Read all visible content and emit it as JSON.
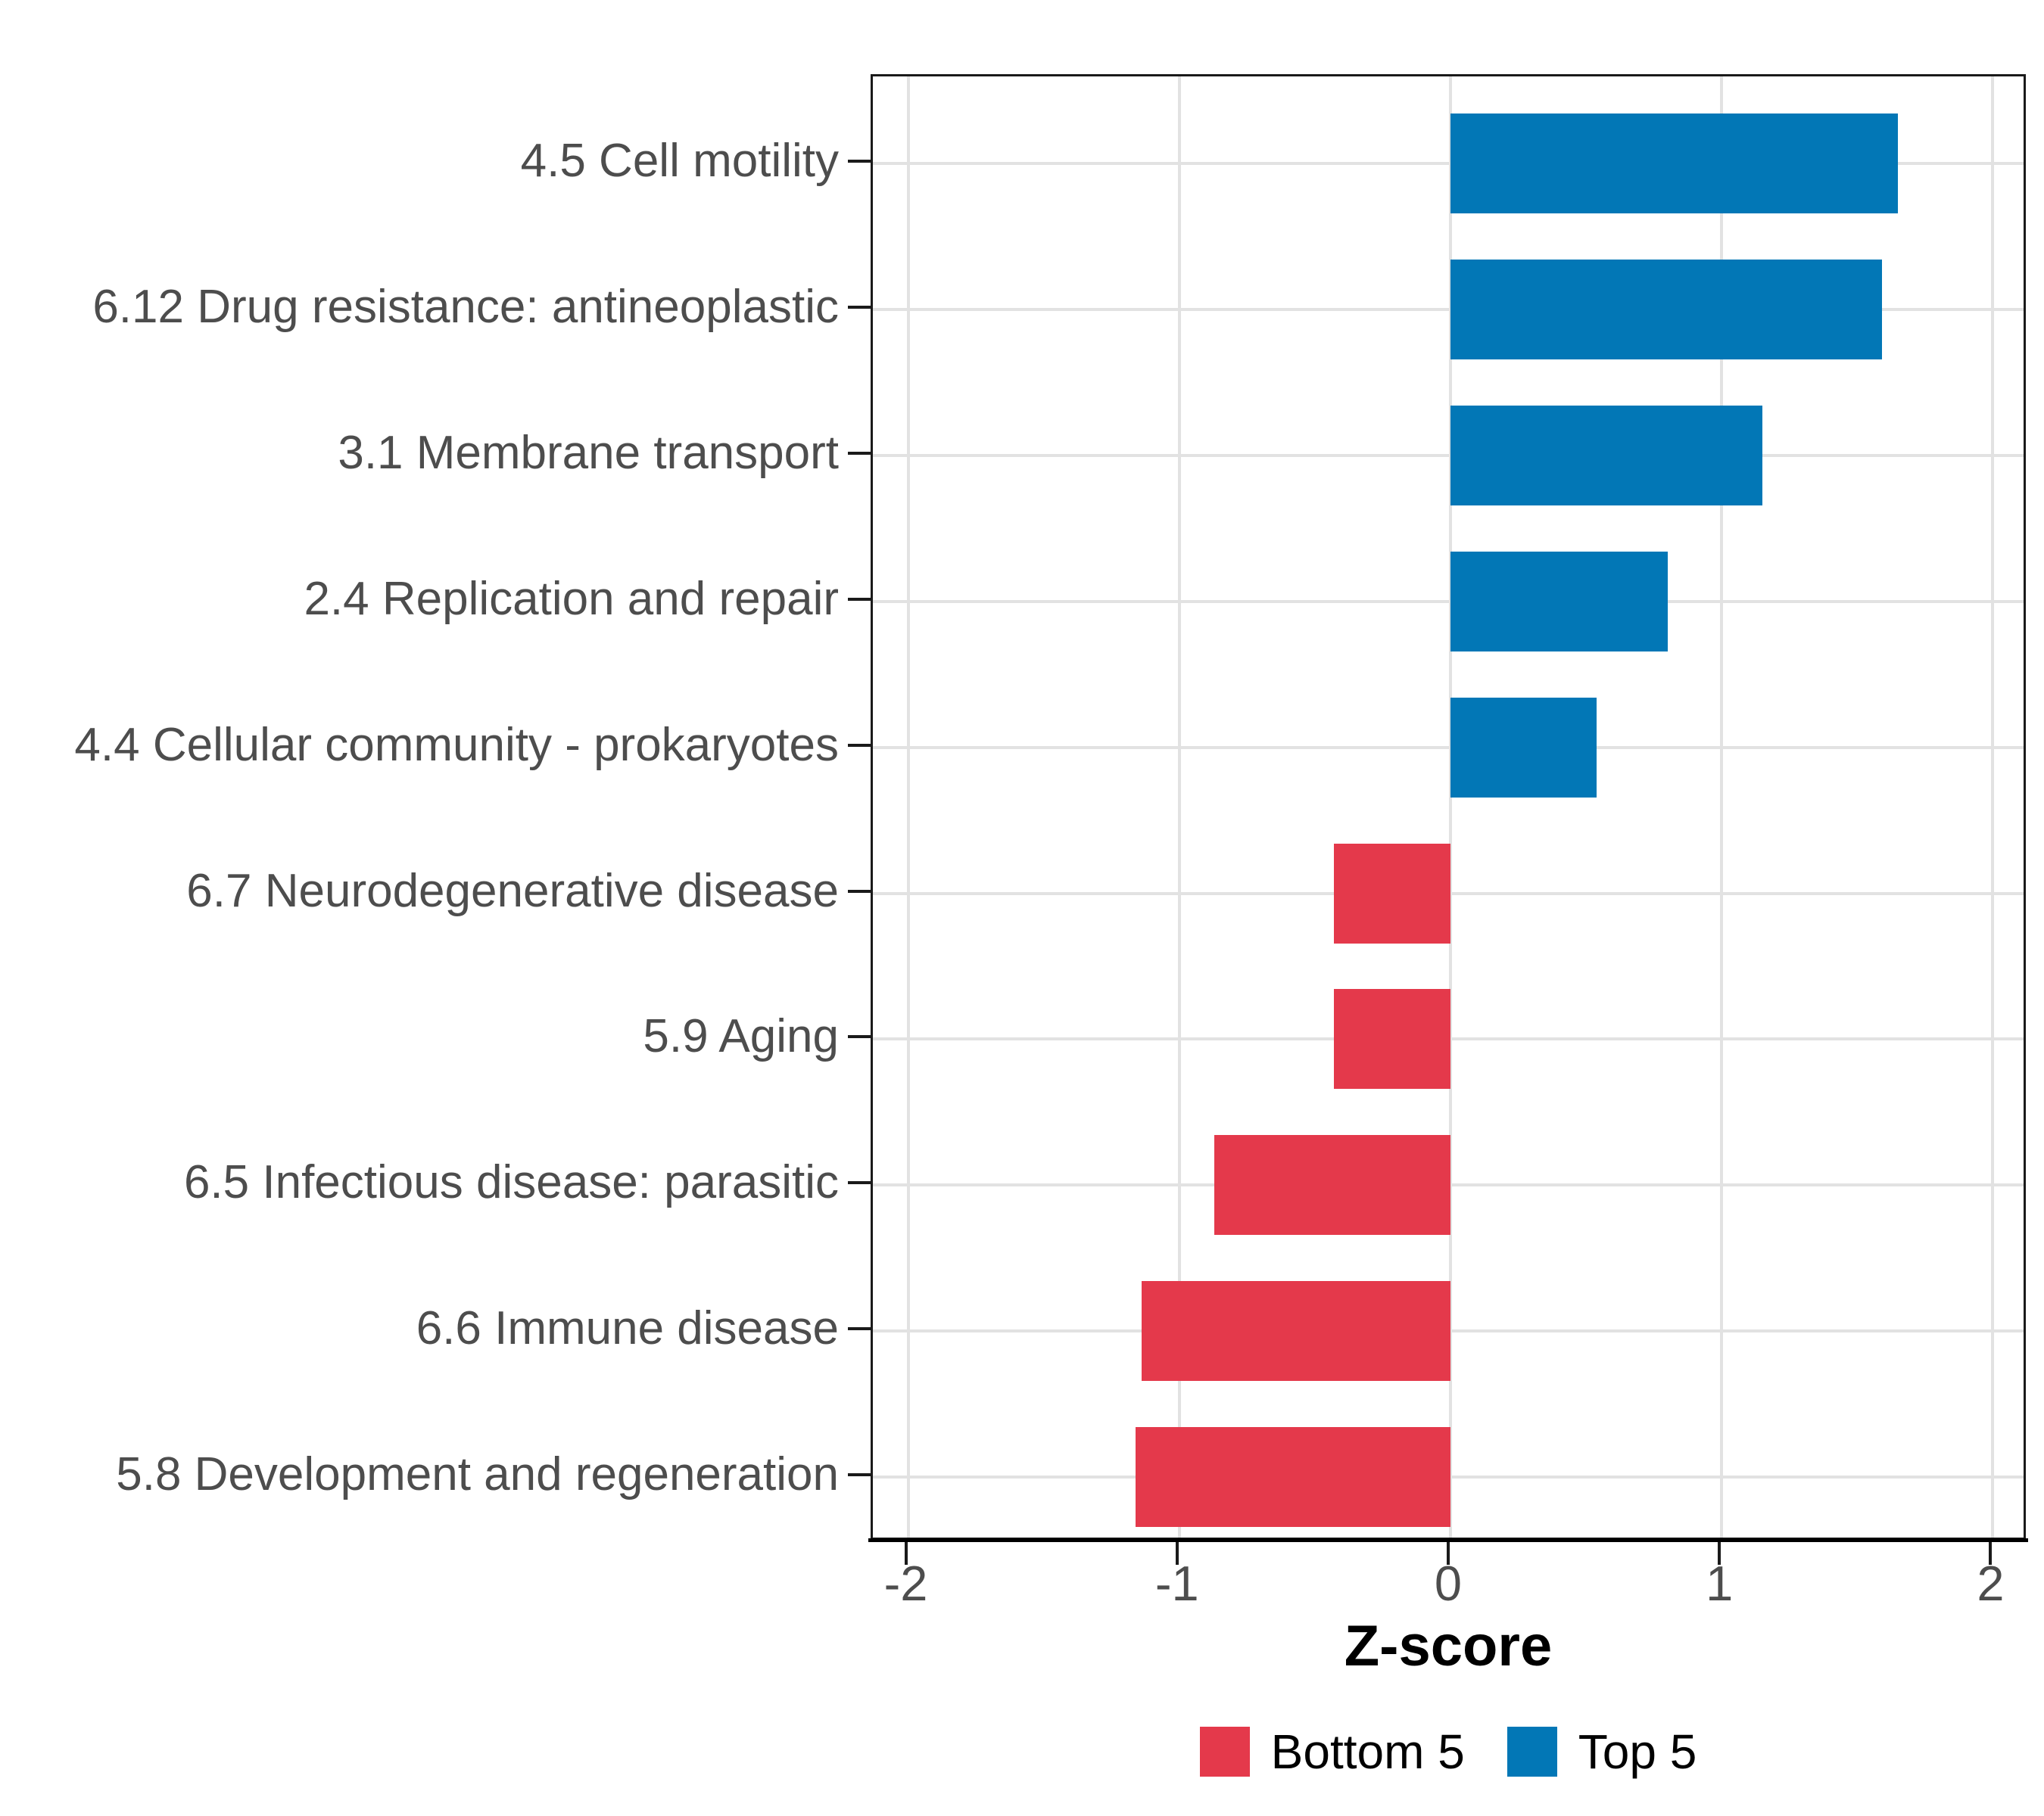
{
  "chart_data": {
    "type": "bar",
    "orientation": "horizontal",
    "title": "",
    "xlabel": "Z-score",
    "ylabel": "",
    "categories": [
      "4.5 Cell motility",
      "6.12 Drug resistance: antineoplastic",
      "3.1 Membrane transport",
      "2.4 Replication and repair",
      "4.4 Cellular community - prokaryotes",
      "6.7 Neurodegenerative disease",
      "5.9 Aging",
      "6.5 Infectious disease: parasitic",
      "6.6 Immune disease",
      "5.8 Development and regeneration"
    ],
    "values": [
      1.65,
      1.59,
      1.15,
      0.8,
      0.54,
      -0.43,
      -0.43,
      -0.87,
      -1.14,
      -1.16
    ],
    "groups": [
      "Top 5",
      "Top 5",
      "Top 5",
      "Top 5",
      "Top 5",
      "Bottom 5",
      "Bottom 5",
      "Bottom 5",
      "Bottom 5",
      "Bottom 5"
    ],
    "xlim": [
      -2.13,
      2.13
    ],
    "xticks": [
      -2,
      -1,
      0,
      1,
      2
    ],
    "xtick_labels": [
      "-2",
      "-1",
      "0",
      "1",
      "2"
    ],
    "grid": "major vertical at integer ticks, horizontal at category centers",
    "legend_position": "bottom",
    "legend": [
      {
        "label": "Bottom 5",
        "color": "#e4394b"
      },
      {
        "label": "Top 5",
        "color": "#0277b6"
      }
    ],
    "colors": {
      "bottom5_red": "#e4394b",
      "top5_blue": "#0277b6",
      "gridline": "#e2e2e2",
      "panel_border": "#1a1a1a",
      "axis_text": "#4d4d4d",
      "title_text": "#000000"
    }
  }
}
